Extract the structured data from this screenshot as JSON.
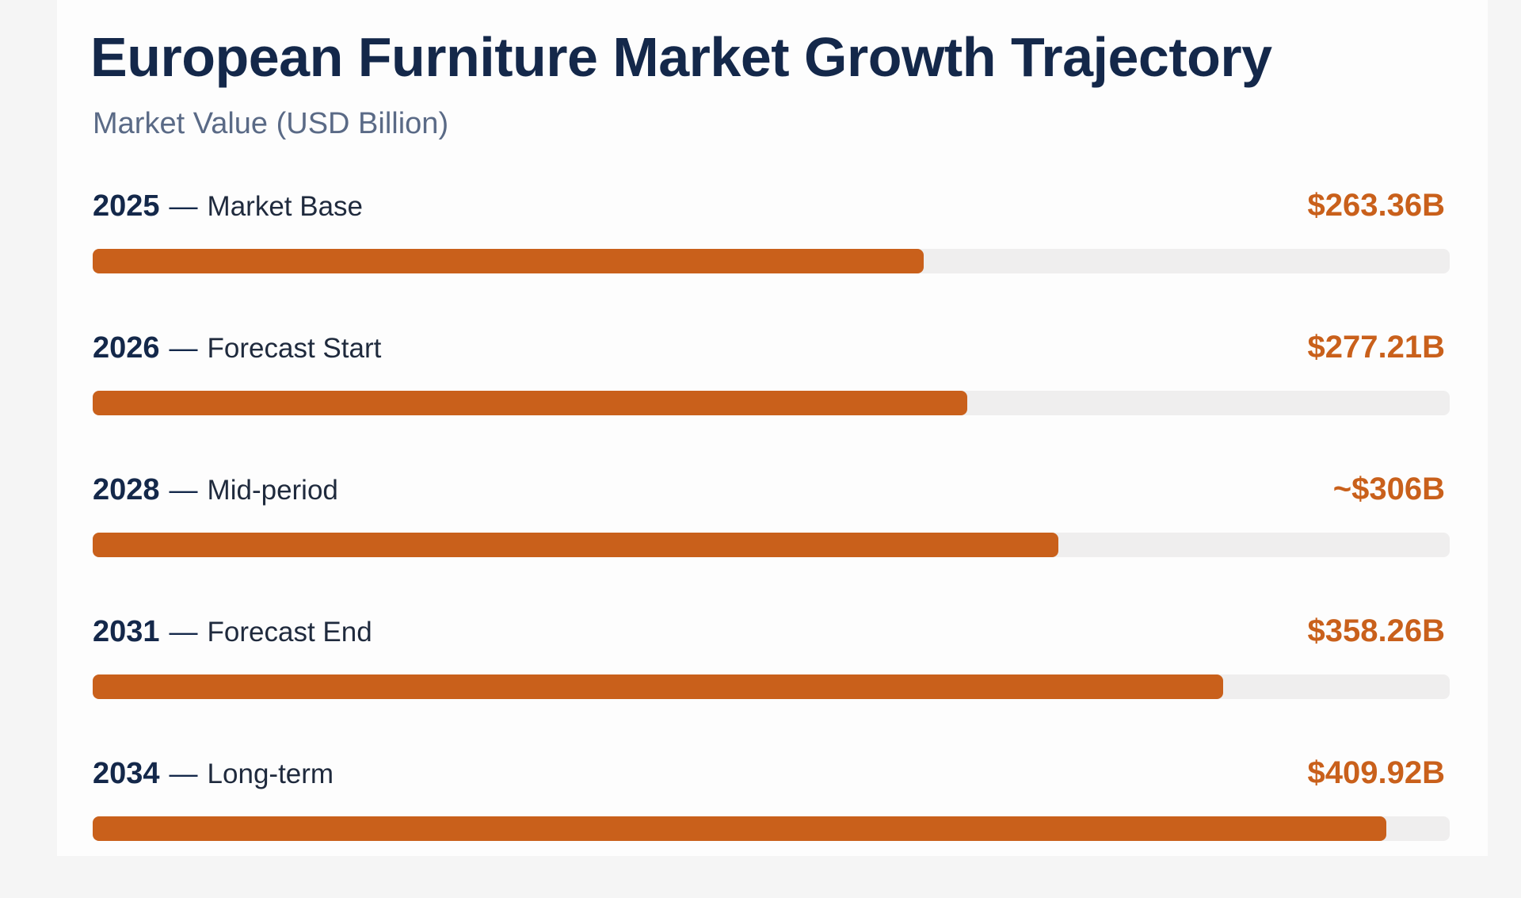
{
  "chart_data": {
    "type": "bar",
    "orientation": "horizontal",
    "title": "European Furniture Market Growth Trajectory",
    "subtitle": "Market Value (USD Billion)",
    "categories": [
      "2025",
      "2026",
      "2028",
      "2031",
      "2034"
    ],
    "labels": [
      "Market Base",
      "Forecast Start",
      "Mid-period",
      "Forecast End",
      "Long-term"
    ],
    "values": [
      263.36,
      277.21,
      306,
      358.26,
      409.92
    ],
    "value_labels": [
      "$263.36B",
      "$277.21B",
      "~$306B",
      "$358.26B",
      "$409.92B"
    ],
    "separator": "—",
    "xlim": [
      0,
      430
    ],
    "colors": {
      "bar": "#c9601b",
      "track": "#efeeee",
      "value_text": "#c9601b",
      "title": "#14284a",
      "subtitle": "#5a6a86"
    },
    "grid": false,
    "legend": "none"
  }
}
